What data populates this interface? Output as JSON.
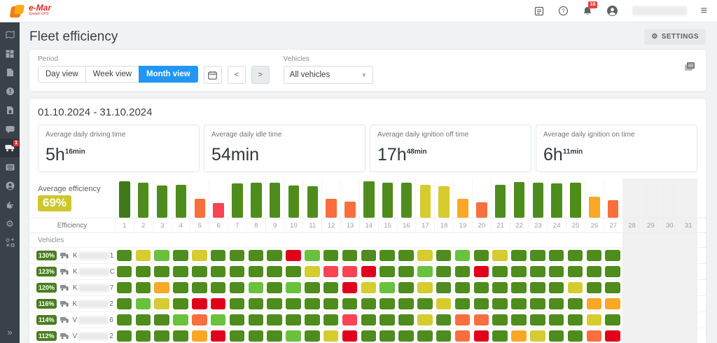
{
  "topbar": {
    "logo_text": "e-Mar",
    "logo_subtext": "System GPS",
    "notification_count": "16"
  },
  "sidebar": {
    "truck_badge": "1",
    "items": [
      "map",
      "dashboard",
      "documents",
      "alerts",
      "fuel-report",
      "messages",
      "fleet-efficiency",
      "terminal",
      "account",
      "share",
      "settings",
      "tools"
    ],
    "collapse": "»"
  },
  "header": {
    "title": "Fleet efficiency",
    "settings_label": "SETTINGS"
  },
  "filters": {
    "period_label": "Period",
    "views": [
      "Day view",
      "Week view",
      "Month view"
    ],
    "active_view": "Month view",
    "vehicles_label": "Vehicles",
    "vehicles_value": "All vehicles"
  },
  "summary": {
    "date_range": "01.10.2024 - 31.10.2024",
    "cards": [
      {
        "label": "Average daily driving time",
        "value": "5h",
        "sup": "16min"
      },
      {
        "label": "Average daily idle time",
        "value": "54min",
        "sup": ""
      },
      {
        "label": "Average daily ignition off time",
        "value": "17h",
        "sup": "48min"
      },
      {
        "label": "Average daily ignition on time",
        "value": "6h",
        "sup": "11min"
      }
    ]
  },
  "palette": {
    "dg": "#41791a",
    "g": "#4e8c1e",
    "lg": "#69c13d",
    "y": "#d6cb2f",
    "a": "#f9a825",
    "o": "#f96e3d",
    "sr": "#fb4353",
    "r": "#e0001b",
    "accent_blue": "#2196f3",
    "badge_green": "#4a7d20",
    "avg_badge_yellow": "#cfc62c",
    "future_gray": "#f0f0f0"
  },
  "chart_data": {
    "type": "bar",
    "average_label": "Average efficiency",
    "average_value": "69%",
    "row_label": "Efficiency",
    "days": [
      1,
      2,
      3,
      4,
      5,
      6,
      7,
      8,
      9,
      10,
      11,
      12,
      13,
      14,
      15,
      16,
      17,
      18,
      19,
      20,
      21,
      22,
      23,
      24,
      25,
      26,
      27,
      28,
      29,
      30,
      31
    ],
    "data_days": 27,
    "values": [
      100,
      96,
      89,
      91,
      52,
      40,
      95,
      97,
      96,
      89,
      87,
      51,
      44,
      100,
      97,
      96,
      90,
      86,
      52,
      42,
      91,
      99,
      96,
      94,
      96,
      58,
      48
    ],
    "bar_colors": [
      "dg",
      "g",
      "g",
      "g",
      "o",
      "sr",
      "g",
      "g",
      "g",
      "g",
      "g",
      "o",
      "o",
      "g",
      "g",
      "g",
      "y",
      "y",
      "a",
      "o",
      "g",
      "g",
      "g",
      "g",
      "g",
      "a",
      "o"
    ]
  },
  "table": {
    "header": "Vehicles",
    "rows": [
      {
        "efficiency": "130%",
        "name_first": "K",
        "name_last": "1",
        "cells": [
          "g",
          "y",
          "lg",
          "g",
          "y",
          "g",
          "g",
          "g",
          "g",
          "r",
          "lg",
          "g",
          "g",
          "g",
          "g",
          "g",
          "y",
          "g",
          "lg",
          "g",
          "y",
          "g",
          "g",
          "g",
          "g",
          "g",
          "g"
        ]
      },
      {
        "efficiency": "123%",
        "name_first": "K",
        "name_last": "C",
        "cells": [
          "g",
          "g",
          "g",
          "g",
          "g",
          "g",
          "g",
          "g",
          "g",
          "g",
          "y",
          "sr",
          "sr",
          "r",
          "g",
          "g",
          "lg",
          "g",
          "g",
          "r",
          "g",
          "g",
          "g",
          "g",
          "g",
          "g",
          "g"
        ]
      },
      {
        "efficiency": "120%",
        "name_first": "K",
        "name_last": "7",
        "cells": [
          "g",
          "g",
          "a",
          "g",
          "g",
          "g",
          "g",
          "lg",
          "g",
          "lg",
          "g",
          "g",
          "r",
          "y",
          "lg",
          "g",
          "y",
          "g",
          "g",
          "g",
          "g",
          "g",
          "g",
          "g",
          "y",
          "g",
          "g"
        ]
      },
      {
        "efficiency": "116%",
        "name_first": "K",
        "name_last": "2",
        "cells": [
          "g",
          "lg",
          "y",
          "g",
          "r",
          "r",
          "g",
          "g",
          "g",
          "g",
          "g",
          "g",
          "g",
          "g",
          "g",
          "g",
          "g",
          "y",
          "g",
          "g",
          "g",
          "g",
          "g",
          "g",
          "g",
          "a",
          "a"
        ]
      },
      {
        "efficiency": "114%",
        "name_first": "V",
        "name_last": "6",
        "cells": [
          "g",
          "g",
          "g",
          "lg",
          "o",
          "lg",
          "g",
          "g",
          "g",
          "g",
          "g",
          "g",
          "sr",
          "g",
          "g",
          "g",
          "y",
          "g",
          "o",
          "o",
          "g",
          "g",
          "g",
          "g",
          "g",
          "y",
          "g"
        ]
      },
      {
        "efficiency": "112%",
        "name_first": "V",
        "name_last": "2",
        "cells": [
          "g",
          "g",
          "g",
          "g",
          "a",
          "r",
          "g",
          "g",
          "g",
          "lg",
          "g",
          "y",
          "r",
          "g",
          "g",
          "g",
          "g",
          "g",
          "o",
          "r",
          "g",
          "a",
          "y",
          "g",
          "g",
          "o",
          "r"
        ]
      },
      {
        "efficiency": "",
        "name_first": "",
        "name_last": "",
        "cells": [
          "g",
          "g",
          "g",
          "g",
          "o",
          "r",
          "g",
          "g",
          "g",
          "lg",
          "g",
          "g",
          "y",
          "g",
          "g",
          "g",
          "o",
          "g",
          "g",
          "r",
          "g",
          "g",
          "g",
          "g",
          "a",
          "lg",
          "r"
        ]
      }
    ]
  }
}
